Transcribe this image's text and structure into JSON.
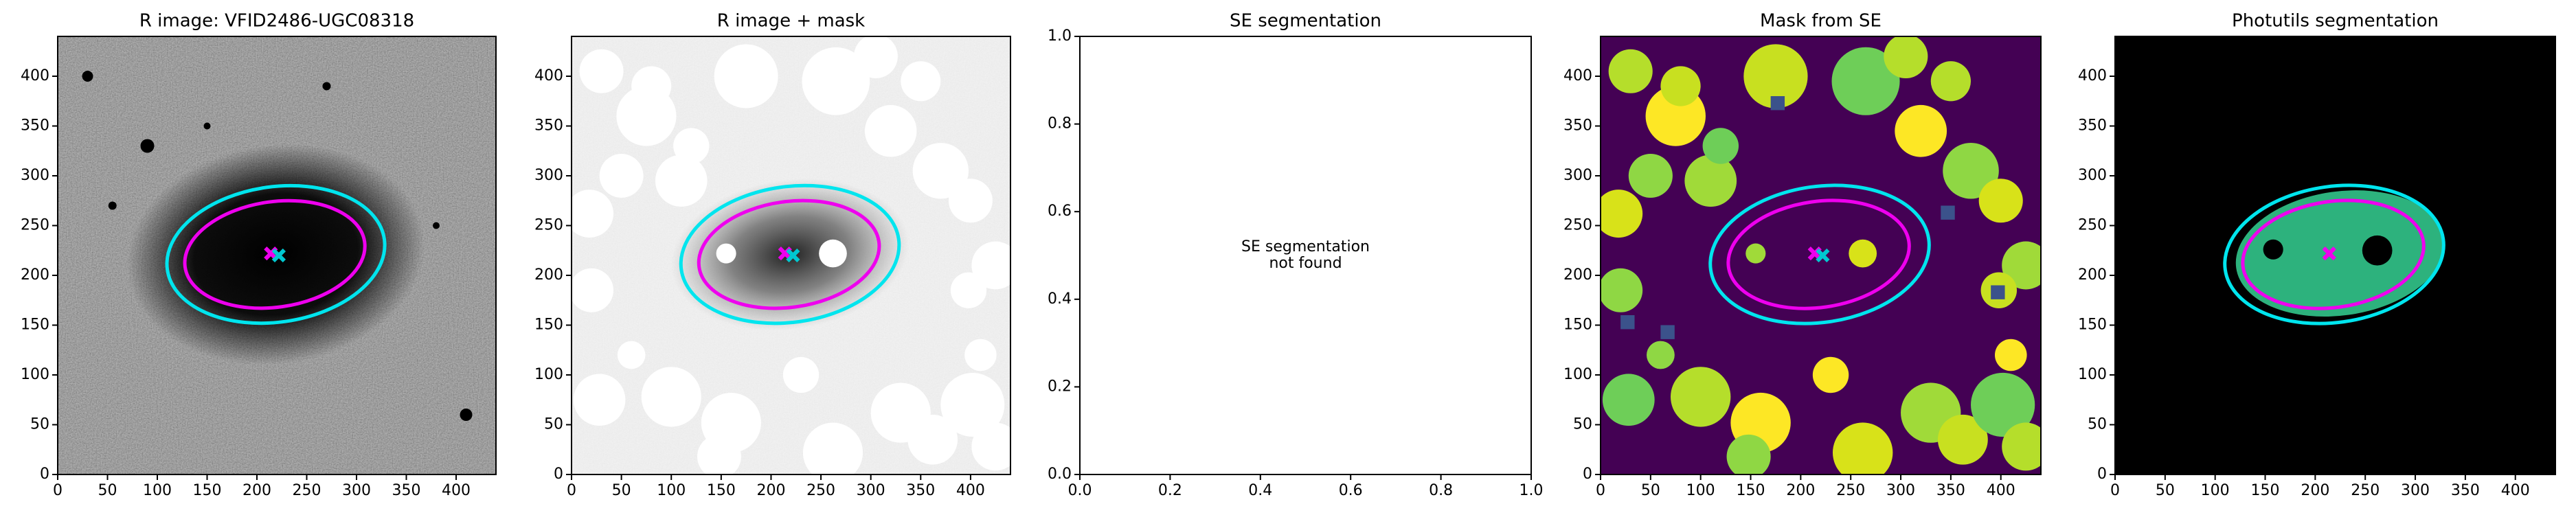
{
  "chart_data": [
    {
      "type": "image",
      "title": "R image: VFID2486-UGC08318",
      "cmap": "gray",
      "xlim": [
        0,
        440
      ],
      "ylim": [
        0,
        440
      ],
      "xticks": [
        0,
        50,
        100,
        150,
        200,
        250,
        300,
        350,
        400
      ],
      "yticks": [
        0,
        50,
        100,
        150,
        200,
        250,
        300,
        350,
        400
      ],
      "ellipses": [
        {
          "cx": 219,
          "cy": 221,
          "rx": 110,
          "ry": 68,
          "angle": 8,
          "color": "#00e5ee"
        },
        {
          "cx": 218,
          "cy": 221,
          "rx": 91,
          "ry": 53,
          "angle": 8,
          "color": "#ee00ee"
        }
      ],
      "markers": [
        {
          "x": 214,
          "y": 222,
          "color": "#ee00ee"
        },
        {
          "x": 222,
          "y": 220,
          "color": "#00c8d0"
        }
      ]
    },
    {
      "type": "image",
      "title": "R image + mask",
      "cmap": "gray_r",
      "xlim": [
        0,
        440
      ],
      "ylim": [
        0,
        440
      ],
      "xticks": [
        0,
        50,
        100,
        150,
        200,
        250,
        300,
        350,
        400
      ],
      "yticks": [
        0,
        50,
        100,
        150,
        200,
        250,
        300,
        350,
        400
      ],
      "ellipses": [
        {
          "cx": 219,
          "cy": 221,
          "rx": 110,
          "ry": 68,
          "angle": 8,
          "color": "#00e5ee"
        },
        {
          "cx": 218,
          "cy": 221,
          "rx": 91,
          "ry": 53,
          "angle": 8,
          "color": "#ee00ee"
        }
      ],
      "markers": [
        {
          "x": 214,
          "y": 222,
          "color": "#ee00ee"
        },
        {
          "x": 222,
          "y": 220,
          "color": "#00c8d0"
        }
      ]
    },
    {
      "type": "empty",
      "title": "SE segmentation",
      "annotation": [
        "SE segmentation",
        "not found"
      ],
      "xlim": [
        0,
        1
      ],
      "ylim": [
        0,
        1
      ],
      "xticks": [
        {
          "value": 0,
          "label": "0.0"
        },
        {
          "value": 0.2,
          "label": "0.2"
        },
        {
          "value": 0.4,
          "label": "0.4"
        },
        {
          "value": 0.6,
          "label": "0.6"
        },
        {
          "value": 0.8,
          "label": "0.8"
        },
        {
          "value": 1,
          "label": "1.0"
        }
      ],
      "yticks": [
        {
          "value": 0,
          "label": "0.0"
        },
        {
          "value": 0.2,
          "label": "0.2"
        },
        {
          "value": 0.4,
          "label": "0.4"
        },
        {
          "value": 0.6,
          "label": "0.6"
        },
        {
          "value": 0.8,
          "label": "0.8"
        },
        {
          "value": 1,
          "label": "1.0"
        }
      ]
    },
    {
      "type": "image",
      "title": "Mask from SE",
      "cmap": "viridis",
      "xlim": [
        0,
        440
      ],
      "ylim": [
        0,
        440
      ],
      "xticks": [
        0,
        50,
        100,
        150,
        200,
        250,
        300,
        350,
        400
      ],
      "yticks": [
        0,
        50,
        100,
        150,
        200,
        250,
        300,
        350,
        400
      ],
      "ellipses": [
        {
          "cx": 219,
          "cy": 221,
          "rx": 110,
          "ry": 68,
          "angle": 8,
          "color": "#00e5ee"
        },
        {
          "cx": 218,
          "cy": 221,
          "rx": 91,
          "ry": 53,
          "angle": 8,
          "color": "#ee00ee"
        }
      ],
      "markers": [
        {
          "x": 214,
          "y": 222,
          "color": "#ee00ee"
        },
        {
          "x": 222,
          "y": 220,
          "color": "#00c8d0"
        }
      ]
    },
    {
      "type": "image",
      "title": "Photutils segmentation",
      "cmap": "segmentation",
      "xlim": [
        0,
        440
      ],
      "ylim": [
        0,
        440
      ],
      "xticks": [
        0,
        50,
        100,
        150,
        200,
        250,
        300,
        350,
        400
      ],
      "yticks": [
        0,
        50,
        100,
        150,
        200,
        250,
        300,
        350,
        400
      ],
      "ellipses": [
        {
          "cx": 219,
          "cy": 221,
          "rx": 110,
          "ry": 68,
          "angle": 8,
          "color": "#00e5ee"
        },
        {
          "cx": 218,
          "cy": 221,
          "rx": 91,
          "ry": 53,
          "angle": 8,
          "color": "#ee00ee"
        }
      ],
      "markers": [
        {
          "x": 214,
          "y": 222,
          "color": "#ee00ee"
        }
      ]
    }
  ]
}
